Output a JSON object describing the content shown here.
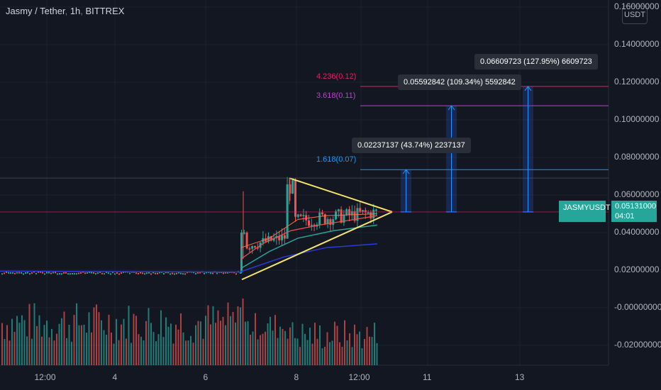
{
  "header": {
    "symbol": "Jasmy / Tether",
    "interval": "1h",
    "exchange": "BITTREX",
    "unit": "USDT"
  },
  "last_price": {
    "ticker": "JASMYUSDT",
    "value": "0.05131000",
    "countdown": "04:01"
  },
  "chart_data": {
    "type": "candlestick",
    "y_axis": {
      "ticks": [
        "0.16000000",
        "0.14000000",
        "0.12000000",
        "0.10000000",
        "0.08000000",
        "0.06000000",
        "0.04000000",
        "0.02000000",
        "-0.00000000",
        "-0.02000000"
      ],
      "values": [
        0.16,
        0.14,
        0.12,
        0.1,
        0.08,
        0.06,
        0.04,
        0.02,
        0.0,
        -0.02
      ]
    },
    "x_axis": {
      "ticks": [
        "12:00",
        "4",
        "6",
        "8",
        "12:00",
        "11",
        "13"
      ]
    },
    "price_levels": [
      {
        "label": "4.236(0.12)",
        "value": 0.1178,
        "color": "#e91e63"
      },
      {
        "label": "3.618(0.11)",
        "value": 0.1075,
        "color": "#b845c8"
      },
      {
        "label": "1.618(0.07)",
        "value": 0.0735,
        "color": "#2196f3"
      },
      {
        "label": "",
        "value": 0.051,
        "color": "#e91e63"
      },
      {
        "label": "",
        "value": 0.069,
        "color": "#555a66"
      }
    ],
    "projections": [
      {
        "label": "0.02237137 (43.74%) 2237137",
        "from": 0.051,
        "to": 0.0735
      },
      {
        "label": "0.05592842 (109.34%) 5592842",
        "from": 0.051,
        "to": 0.1075
      },
      {
        "label": "0.06609723 (127.95%) 6609723",
        "from": 0.051,
        "to": 0.1178
      }
    ],
    "triangle": {
      "top": 0.069,
      "bottom": 0.015,
      "apex": 0.051
    },
    "grid": true
  }
}
